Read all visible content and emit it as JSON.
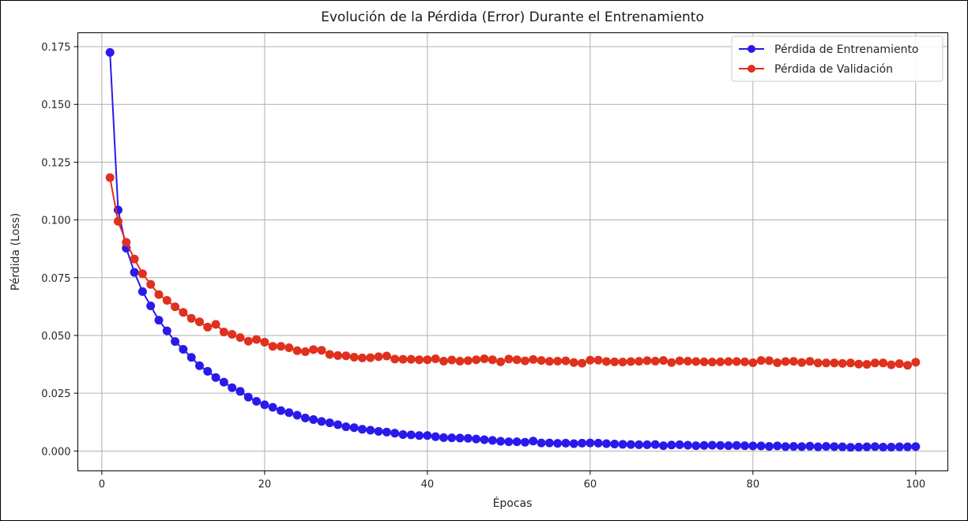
{
  "chart_data": {
    "type": "line",
    "title": "Evolución de la Pérdida (Error) Durante el Entrenamiento",
    "xlabel": "Épocas",
    "ylabel": "Pérdida (Loss)",
    "xlim": [
      -2.95,
      103.95
    ],
    "ylim": [
      -0.0086,
      0.181
    ],
    "xticks": [
      0,
      20,
      40,
      60,
      80,
      100
    ],
    "xtick_labels": [
      "0",
      "20",
      "40",
      "60",
      "80",
      "100"
    ],
    "yticks": [
      0.0,
      0.025,
      0.05,
      0.075,
      0.1,
      0.125,
      0.15,
      0.175
    ],
    "ytick_labels": [
      "0.000",
      "0.025",
      "0.050",
      "0.075",
      "0.100",
      "0.125",
      "0.150",
      "0.175"
    ],
    "grid": true,
    "legend_position": "top-right",
    "x": [
      1,
      2,
      3,
      4,
      5,
      6,
      7,
      8,
      9,
      10,
      11,
      12,
      13,
      14,
      15,
      16,
      17,
      18,
      19,
      20,
      21,
      22,
      23,
      24,
      25,
      26,
      27,
      28,
      29,
      30,
      31,
      32,
      33,
      34,
      35,
      36,
      37,
      38,
      39,
      40,
      41,
      42,
      43,
      44,
      45,
      46,
      47,
      48,
      49,
      50,
      51,
      52,
      53,
      54,
      55,
      56,
      57,
      58,
      59,
      60,
      61,
      62,
      63,
      64,
      65,
      66,
      67,
      68,
      69,
      70,
      71,
      72,
      73,
      74,
      75,
      76,
      77,
      78,
      79,
      80,
      81,
      82,
      83,
      84,
      85,
      86,
      87,
      88,
      89,
      90,
      91,
      92,
      93,
      94,
      95,
      96,
      97,
      98,
      99,
      100
    ],
    "series": [
      {
        "name": "Pérdida de Entrenamiento",
        "color": "#2a1aea",
        "values": [
          0.1725,
          0.1043,
          0.0878,
          0.0773,
          0.069,
          0.0628,
          0.0566,
          0.052,
          0.0474,
          0.044,
          0.0405,
          0.0369,
          0.0345,
          0.0318,
          0.0298,
          0.0274,
          0.0258,
          0.0233,
          0.0215,
          0.02,
          0.0189,
          0.0175,
          0.0166,
          0.0155,
          0.0143,
          0.0136,
          0.0128,
          0.0122,
          0.0114,
          0.0105,
          0.0101,
          0.0094,
          0.009,
          0.0085,
          0.0082,
          0.0077,
          0.0071,
          0.007,
          0.0067,
          0.0067,
          0.0062,
          0.0058,
          0.0057,
          0.0056,
          0.0055,
          0.0052,
          0.0049,
          0.0046,
          0.0042,
          0.004,
          0.004,
          0.0038,
          0.0043,
          0.0035,
          0.0035,
          0.0033,
          0.0034,
          0.0032,
          0.0034,
          0.0035,
          0.0034,
          0.0032,
          0.003,
          0.0029,
          0.0028,
          0.0027,
          0.0027,
          0.0028,
          0.0023,
          0.0026,
          0.0027,
          0.0025,
          0.0023,
          0.0024,
          0.0025,
          0.0024,
          0.0023,
          0.0024,
          0.0023,
          0.0022,
          0.0022,
          0.002,
          0.0022,
          0.0019,
          0.002,
          0.0019,
          0.0021,
          0.0018,
          0.002,
          0.0019,
          0.0018,
          0.0016,
          0.0017,
          0.0018,
          0.0019,
          0.0017,
          0.0017,
          0.0018,
          0.0018,
          0.0019
        ]
      },
      {
        "name": "Pérdida de Validación",
        "color": "#e0301e",
        "values": [
          0.1183,
          0.0994,
          0.0903,
          0.0831,
          0.0767,
          0.0721,
          0.0677,
          0.0652,
          0.0624,
          0.06,
          0.0574,
          0.0559,
          0.0536,
          0.0548,
          0.0515,
          0.0505,
          0.0491,
          0.0475,
          0.0483,
          0.0471,
          0.0453,
          0.0453,
          0.0447,
          0.0434,
          0.043,
          0.0439,
          0.0436,
          0.0418,
          0.0413,
          0.0412,
          0.0406,
          0.0403,
          0.0404,
          0.0408,
          0.0411,
          0.0398,
          0.0397,
          0.0397,
          0.0395,
          0.0395,
          0.0399,
          0.0389,
          0.0394,
          0.0389,
          0.0391,
          0.0395,
          0.0399,
          0.0395,
          0.0386,
          0.0398,
          0.0395,
          0.039,
          0.0396,
          0.0392,
          0.0388,
          0.0389,
          0.039,
          0.0383,
          0.038,
          0.0393,
          0.0393,
          0.0387,
          0.0386,
          0.0385,
          0.0387,
          0.0388,
          0.0391,
          0.0389,
          0.0392,
          0.0383,
          0.039,
          0.0389,
          0.0387,
          0.0386,
          0.0385,
          0.0386,
          0.0387,
          0.0387,
          0.0386,
          0.0382,
          0.0392,
          0.0391,
          0.0382,
          0.0387,
          0.0388,
          0.0383,
          0.0388,
          0.0381,
          0.0381,
          0.0381,
          0.0379,
          0.0381,
          0.0376,
          0.0375,
          0.0381,
          0.0381,
          0.0373,
          0.0378,
          0.0371,
          0.0384
        ]
      }
    ]
  }
}
